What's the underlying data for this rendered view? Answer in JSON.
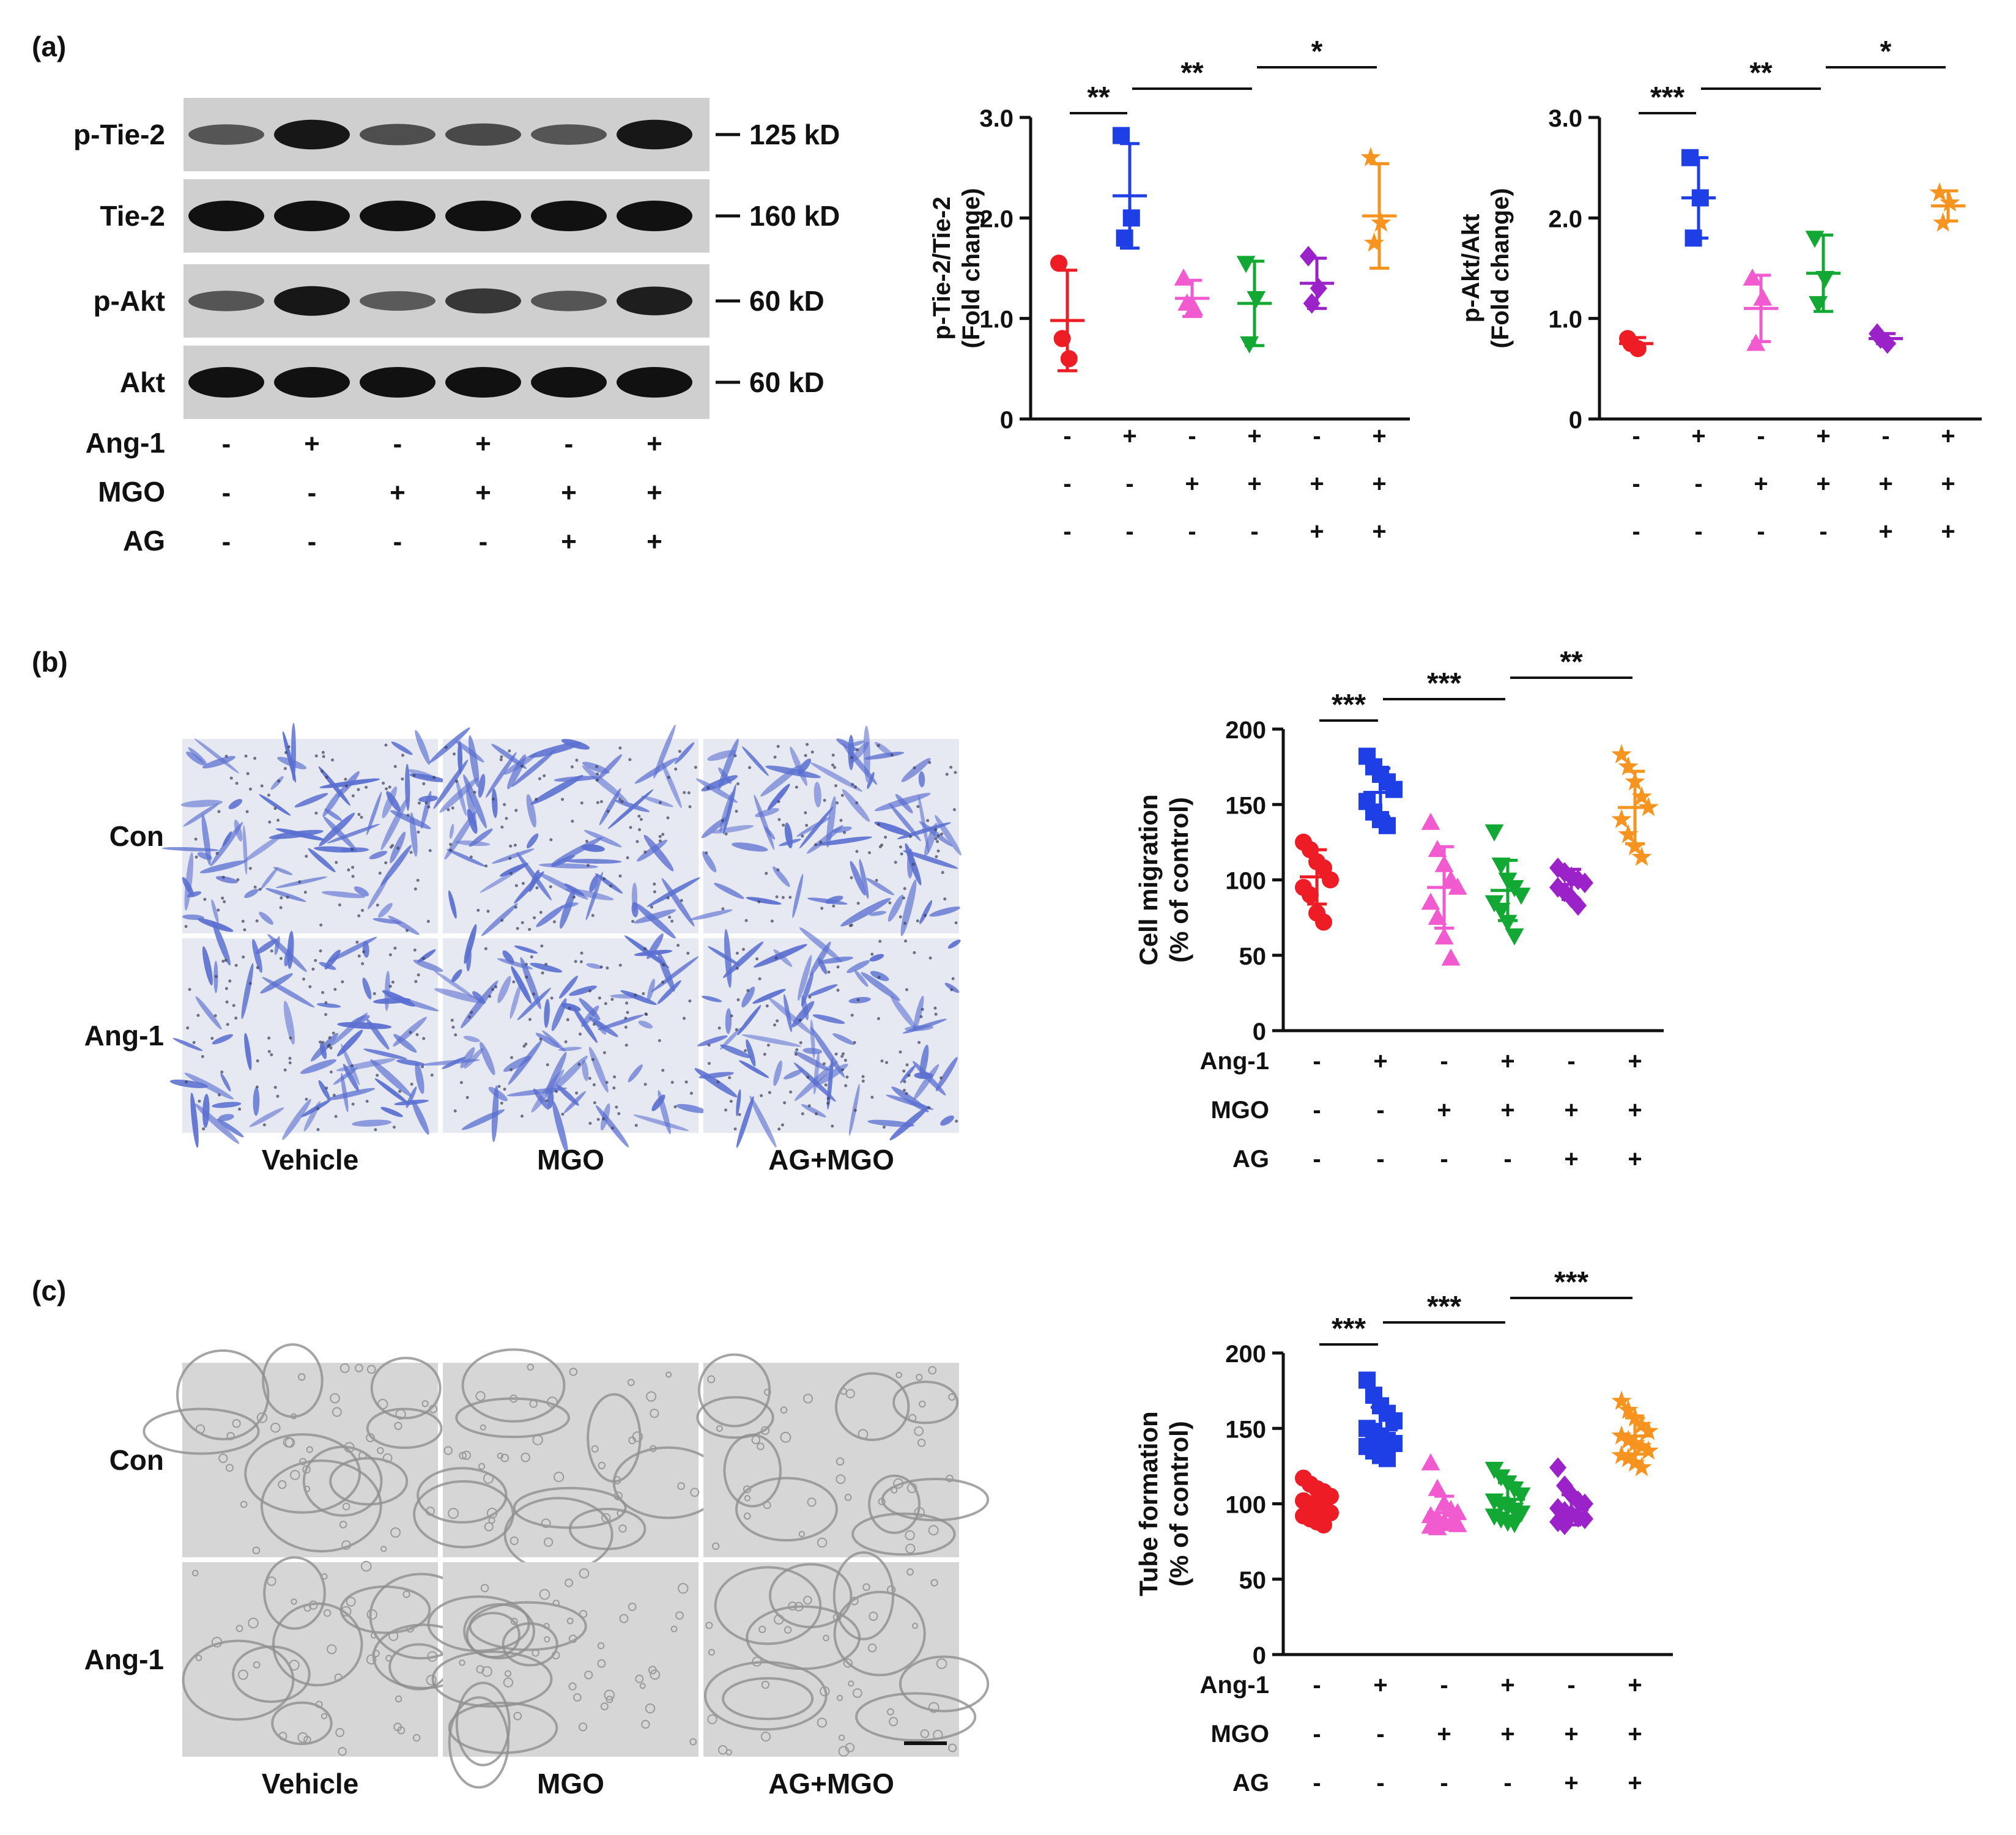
{
  "panels": {
    "a": {
      "label": "(a)"
    },
    "b": {
      "label": "(b)"
    },
    "c": {
      "label": "(c)"
    }
  },
  "treatments": {
    "rows": [
      {
        "label": "Ang-1",
        "signs": [
          "-",
          "+",
          "-",
          "+",
          "-",
          "+"
        ]
      },
      {
        "label": "MGO",
        "signs": [
          "-",
          "-",
          "+",
          "+",
          "+",
          "+"
        ]
      },
      {
        "label": "AG",
        "signs": [
          "-",
          "-",
          "-",
          "-",
          "+",
          "+"
        ]
      }
    ]
  },
  "western_blot": {
    "bands": [
      {
        "name": "p-Tie-2",
        "size": "125 kD",
        "intensity": [
          0.45,
          0.95,
          0.5,
          0.55,
          0.45,
          0.95
        ]
      },
      {
        "name": "Tie-2",
        "size": "160 kD",
        "intensity": [
          1,
          1,
          1,
          1,
          1,
          1
        ]
      },
      {
        "name": "p-Akt",
        "size": "60 kD",
        "intensity": [
          0.45,
          0.95,
          0.4,
          0.7,
          0.45,
          0.9
        ]
      },
      {
        "name": "Akt",
        "size": "60 kD",
        "intensity": [
          1,
          1,
          1,
          1,
          1,
          1
        ]
      }
    ]
  },
  "image_grids": {
    "b": {
      "rows": [
        "Con",
        "Ang-1"
      ],
      "cols": [
        "Vehicle",
        "MGO",
        "AG+MGO"
      ],
      "tint": "#5a6fd0"
    },
    "c": {
      "rows": [
        "Con",
        "Ang-1"
      ],
      "cols": [
        "Vehicle",
        "MGO",
        "AG+MGO"
      ],
      "tint": "#b5b5b5"
    }
  },
  "colors": {
    "groups": [
      "#ee1c25",
      "#1f3fe6",
      "#f25ad0",
      "#12a833",
      "#9b22c9",
      "#f79420"
    ],
    "markers": [
      "circle",
      "square",
      "triangle-up",
      "triangle-down",
      "diamond",
      "star"
    ]
  },
  "chart_data": [
    {
      "id": "ptie2",
      "type": "scatter",
      "ylabel": [
        "p-Tie-2/Tie-2",
        "(Fold change)"
      ],
      "ylim": [
        0,
        3.0
      ],
      "yticks": [
        "0",
        "1.0",
        "2.0",
        "3.0"
      ],
      "groups": [
        {
          "points": [
            1.55,
            0.6,
            0.8
          ],
          "mean": 0.98,
          "sd": 0.5
        },
        {
          "points": [
            2.82,
            2.0,
            1.8
          ],
          "mean": 2.22,
          "sd": 0.52
        },
        {
          "points": [
            1.4,
            1.1,
            1.15
          ],
          "mean": 1.2,
          "sd": 0.18
        },
        {
          "points": [
            1.55,
            1.2,
            0.75
          ],
          "mean": 1.15,
          "sd": 0.42
        },
        {
          "points": [
            1.62,
            1.3,
            1.15
          ],
          "mean": 1.35,
          "sd": 0.25
        },
        {
          "points": [
            2.6,
            1.95,
            1.75
          ],
          "mean": 2.02,
          "sd": 0.52
        }
      ],
      "sig": [
        {
          "from": 0,
          "to": 1,
          "text": "**"
        },
        {
          "from": 1,
          "to": 3,
          "text": "**"
        },
        {
          "from": 3,
          "to": 5,
          "text": "*"
        }
      ]
    },
    {
      "id": "pakt",
      "type": "scatter",
      "ylabel": [
        "p-Akt/Akt",
        "(Fold change)"
      ],
      "ylim": [
        0,
        3.0
      ],
      "yticks": [
        "0",
        "1.0",
        "2.0",
        "3.0"
      ],
      "groups": [
        {
          "points": [
            0.8,
            0.7,
            0.75
          ],
          "mean": 0.75,
          "sd": 0.06
        },
        {
          "points": [
            2.6,
            2.2,
            1.8
          ],
          "mean": 2.2,
          "sd": 0.4
        },
        {
          "points": [
            1.4,
            1.2,
            0.75
          ],
          "mean": 1.1,
          "sd": 0.33
        },
        {
          "points": [
            1.8,
            1.4,
            1.15
          ],
          "mean": 1.45,
          "sd": 0.38
        },
        {
          "points": [
            0.85,
            0.75,
            0.8
          ],
          "mean": 0.8,
          "sd": 0.05
        },
        {
          "points": [
            2.25,
            2.15,
            1.95
          ],
          "mean": 2.12,
          "sd": 0.15
        }
      ],
      "sig": [
        {
          "from": 0,
          "to": 1,
          "text": "***"
        },
        {
          "from": 1,
          "to": 3,
          "text": "**"
        },
        {
          "from": 3,
          "to": 5,
          "text": "*"
        }
      ]
    },
    {
      "id": "migration",
      "type": "scatter",
      "ylabel": [
        "Cell migration",
        "(% of control)"
      ],
      "ylim": [
        0,
        200
      ],
      "yticks": [
        "0",
        "50",
        "100",
        "150",
        "200"
      ],
      "groups": [
        {
          "points": [
            125,
            120,
            112,
            108,
            100,
            95,
            90,
            78,
            72
          ],
          "mean": 102,
          "sd": 18
        },
        {
          "points": [
            182,
            175,
            170,
            165,
            160,
            152,
            145,
            140,
            136
          ],
          "mean": 158,
          "sd": 16
        },
        {
          "points": [
            138,
            120,
            110,
            100,
            95,
            85,
            75,
            62,
            48
          ],
          "mean": 95,
          "sd": 27
        },
        {
          "points": [
            132,
            110,
            100,
            95,
            90,
            85,
            80,
            72,
            63
          ],
          "mean": 93,
          "sd": 20
        },
        {
          "points": [
            108,
            105,
            102,
            100,
            98,
            95,
            92,
            88,
            83
          ],
          "mean": 97,
          "sd": 10
        },
        {
          "points": [
            183,
            175,
            165,
            155,
            148,
            140,
            130,
            122,
            115
          ],
          "mean": 148,
          "sd": 24
        }
      ],
      "sig": [
        {
          "from": 0,
          "to": 1,
          "text": "***"
        },
        {
          "from": 1,
          "to": 3,
          "text": "***"
        },
        {
          "from": 3,
          "to": 5,
          "text": "**"
        }
      ]
    },
    {
      "id": "tube",
      "type": "scatter",
      "ylabel": [
        "Tube formation",
        "(% of control)"
      ],
      "ylim": [
        0,
        200
      ],
      "yticks": [
        "0",
        "50",
        "100",
        "150",
        "200"
      ],
      "groups": [
        {
          "points": [
            117,
            113,
            110,
            108,
            105,
            102,
            100,
            98,
            96,
            94,
            92,
            90,
            88,
            86
          ],
          "mean": 101,
          "sd": 9
        },
        {
          "points": [
            182,
            172,
            165,
            160,
            155,
            150,
            148,
            145,
            142,
            140,
            138,
            135,
            132,
            130
          ],
          "mean": 149,
          "sd": 15
        },
        {
          "points": [
            127,
            110,
            100,
            96,
            94,
            92,
            90,
            88,
            87,
            86,
            85,
            84
          ],
          "mean": 94,
          "sd": 11
        },
        {
          "points": [
            123,
            118,
            114,
            110,
            106,
            102,
            100,
            98,
            96,
            94,
            92,
            90,
            88,
            87
          ],
          "mean": 103,
          "sd": 11
        },
        {
          "points": [
            124,
            112,
            106,
            102,
            100,
            97,
            95,
            93,
            91,
            90,
            88,
            86
          ],
          "mean": 96,
          "sd": 10
        },
        {
          "points": [
            168,
            162,
            157,
            152,
            148,
            145,
            142,
            140,
            138,
            135,
            132,
            130,
            127,
            124
          ],
          "mean": 145,
          "sd": 12
        }
      ],
      "sig": [
        {
          "from": 0,
          "to": 1,
          "text": "***"
        },
        {
          "from": 1,
          "to": 3,
          "text": "***"
        },
        {
          "from": 3,
          "to": 5,
          "text": "***"
        }
      ]
    }
  ]
}
